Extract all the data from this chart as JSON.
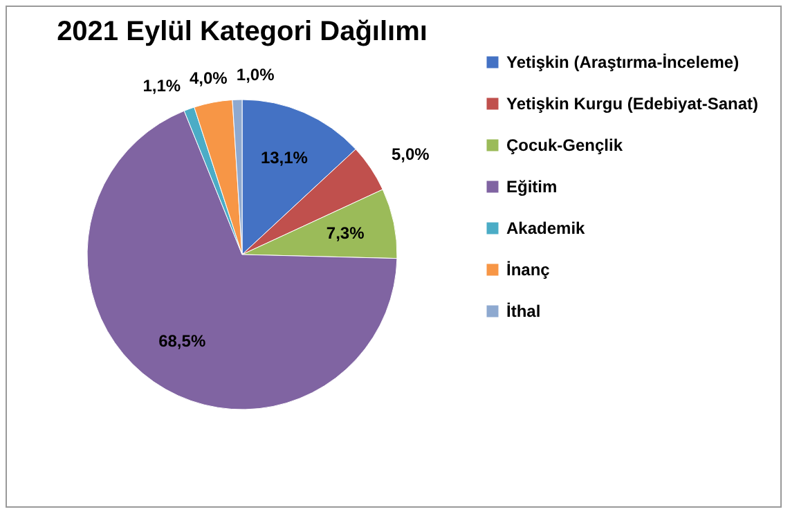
{
  "chart_data": {
    "type": "pie",
    "title": "2021 Eylül Kategori Dağılımı",
    "categories": [
      "Yetişkin (Araştırma-İnceleme)",
      "Yetişkin Kurgu (Edebiyat-Sanat)",
      "Çocuk-Gençlik",
      "Eğitim",
      "Akademik",
      "İnanç",
      "İthal"
    ],
    "values": [
      13.1,
      5.0,
      7.3,
      68.5,
      1.1,
      4.0,
      1.0
    ],
    "colors": [
      "#4472c4",
      "#c0504d",
      "#9bbb59",
      "#8064a2",
      "#4bacc6",
      "#f79646",
      "#8ea9d0"
    ],
    "value_labels": [
      "13,1%",
      "5,0%",
      "7,3%",
      "68,5%",
      "1,1%",
      "4,0%",
      "1,0%"
    ],
    "legend": "right"
  }
}
